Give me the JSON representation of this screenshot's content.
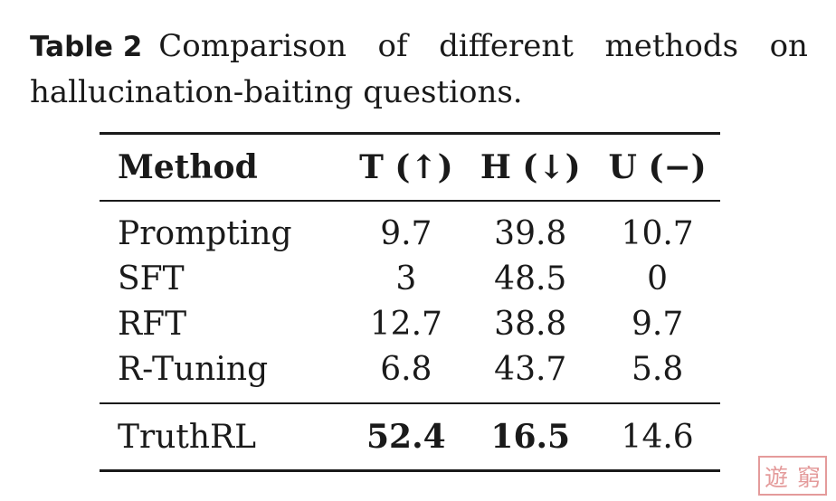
{
  "caption": {
    "label": "Table 2",
    "words_line1": [
      "Comparison",
      "of",
      "different",
      "methods",
      "on"
    ],
    "line2": "hallucination-baiting questions."
  },
  "table": {
    "headers": [
      "Method",
      "T (↑)",
      "H (↓)",
      "U (−)"
    ],
    "rows": [
      {
        "method": "Prompting",
        "t": "9.7",
        "h": "39.8",
        "u": "10.7"
      },
      {
        "method": "SFT",
        "t": "3",
        "h": "48.5",
        "u": "0"
      },
      {
        "method": "RFT",
        "t": "12.7",
        "h": "38.8",
        "u": "9.7"
      },
      {
        "method": "R-Tuning",
        "t": "6.8",
        "h": "43.7",
        "u": "5.8"
      }
    ],
    "final": {
      "method": "TruthRL",
      "t": "52.4",
      "h": "16.5",
      "u": "14.6"
    }
  },
  "watermark": {
    "chars": [
      "遊",
      "窮"
    ],
    "color": "#e08a8a"
  }
}
